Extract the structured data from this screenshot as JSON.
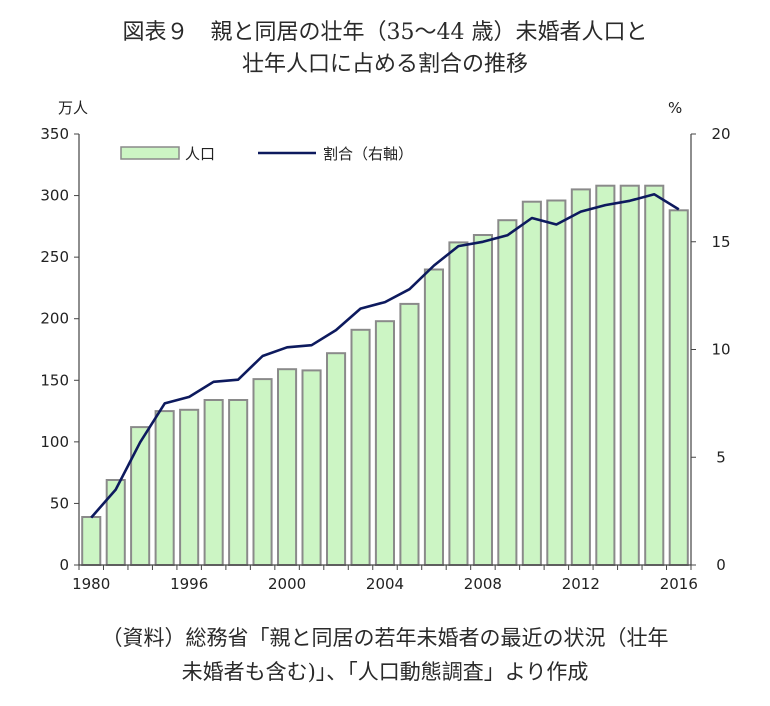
{
  "title_line1": "図表９　親と同居の壮年（35～44 歳）未婚者人口と",
  "title_line2": "壮年人口に占める割合の推移",
  "source_line1": "（資料）総務省「親と同居の若年未婚者の最近の状況（壮年",
  "source_line2": "未婚者も含む)」、「人口動態調査」より作成",
  "colors": {
    "bar_fill": "#ccf5c4",
    "bar_stroke": "#8a8a8a",
    "line": "#0d1a5e",
    "axis": "#444444"
  },
  "chart_data": {
    "type": "bar+line",
    "left_unit": "万人",
    "right_unit": "%",
    "x_tick_labels": [
      "1980",
      "1996",
      "2000",
      "2004",
      "2008",
      "2012",
      "2016"
    ],
    "y_left_ticks": [
      "0",
      "50",
      "100",
      "150",
      "200",
      "250",
      "300",
      "350"
    ],
    "y_right_ticks": [
      "0",
      "5",
      "10",
      "15",
      "20"
    ],
    "y_left_lim": [
      0,
      350
    ],
    "y_right_lim": [
      0,
      20
    ],
    "legend_position": "top-left",
    "categories": [
      "1980",
      "1985",
      "1990",
      "1995",
      "1996",
      "1997",
      "1998",
      "1999",
      "2000",
      "2001",
      "2002",
      "2003",
      "2004",
      "2005",
      "2006",
      "2007",
      "2008",
      "2009",
      "2010",
      "2011",
      "2012",
      "2013",
      "2014",
      "2015",
      "2016"
    ],
    "series": [
      {
        "name": "人口",
        "type": "bar",
        "axis": "left",
        "values": [
          39,
          69,
          112,
          125,
          126,
          134,
          134,
          151,
          159,
          158,
          172,
          191,
          198,
          212,
          240,
          262,
          268,
          280,
          295,
          296,
          305,
          308,
          308,
          308,
          288
        ]
      },
      {
        "name": "割合（右軸）",
        "type": "line",
        "axis": "right",
        "values": [
          2.2,
          3.5,
          5.7,
          7.5,
          7.8,
          8.5,
          8.6,
          9.7,
          10.1,
          10.2,
          10.9,
          11.9,
          12.2,
          12.8,
          13.9,
          14.8,
          15.0,
          15.3,
          16.1,
          15.8,
          16.4,
          16.7,
          16.9,
          17.2,
          16.5
        ]
      }
    ]
  }
}
